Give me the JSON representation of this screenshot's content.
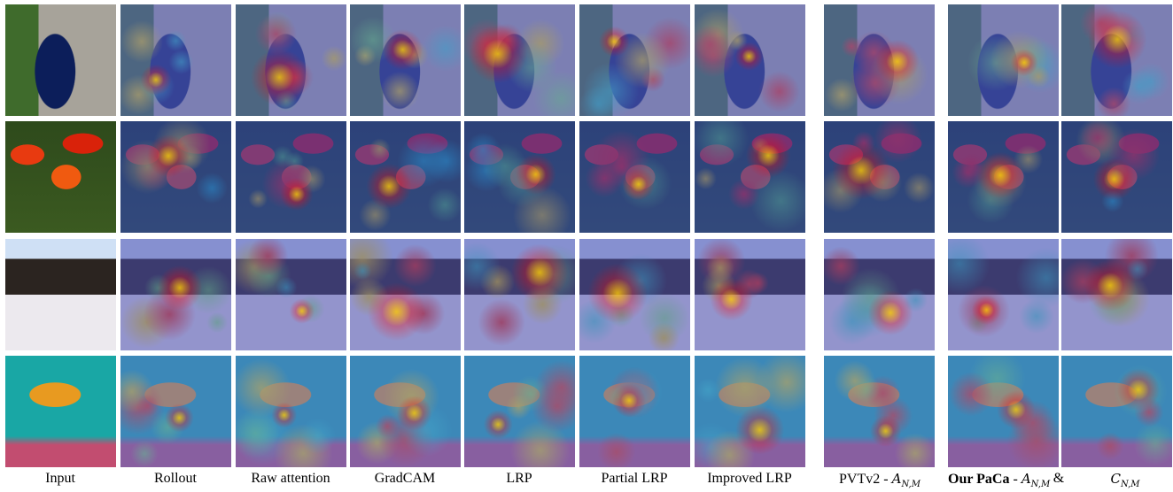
{
  "columns": [
    {
      "label": "Input"
    },
    {
      "label": "Rollout"
    },
    {
      "label": "Raw attention"
    },
    {
      "label": "GradCAM"
    },
    {
      "label": "LRP"
    },
    {
      "label": "Partial LRP"
    },
    {
      "label": "Improved LRP"
    }
  ],
  "pvt": {
    "text": "PVTv2 - ",
    "symbol": "A",
    "subscript": "N,M"
  },
  "paca": {
    "bold": "Our PaCa",
    "text": " - ",
    "symbol": "A",
    "subscript": "N,M",
    "joiner": "&",
    "symbol2": "C",
    "subscript2": "N,M"
  }
}
